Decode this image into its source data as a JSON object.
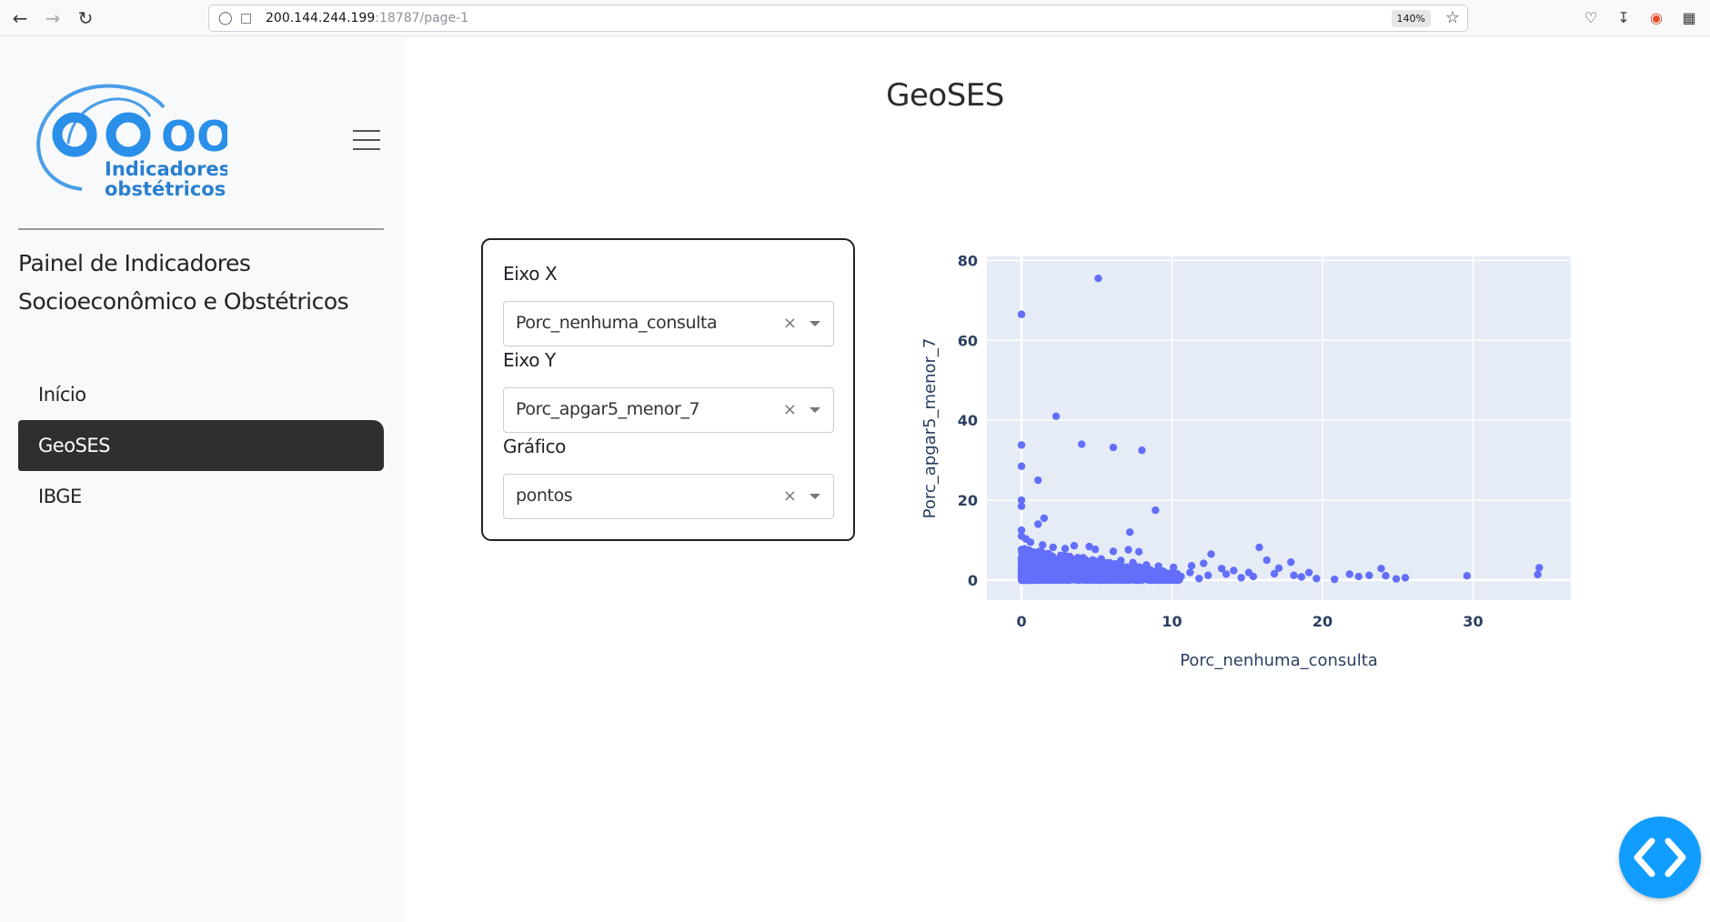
{
  "browser": {
    "url_host": "200.144.244.199",
    "url_rest": ":18787/page-1",
    "zoom": "140%"
  },
  "sidebar": {
    "logo_mark": "OOBr",
    "logo_line1": "Indicadores",
    "logo_line2": "obstétricos",
    "title": "Painel de Indicadores Socioeconômico e Obstétricos",
    "items": [
      {
        "label": "Início",
        "active": false
      },
      {
        "label": "GeoSES",
        "active": true
      },
      {
        "label": "IBGE",
        "active": false
      }
    ]
  },
  "main": {
    "title": "GeoSES",
    "controls": {
      "x_label": "Eixo X",
      "x_value": "Porc_nenhuma_consulta",
      "y_label": "Eixo Y",
      "y_value": "Porc_apgar5_menor_7",
      "chart_label": "Gráfico",
      "chart_value": "pontos",
      "clear_symbol": "×"
    }
  },
  "colors": {
    "accent": "#119dff",
    "marker": "#636efa",
    "plot_bg": "#e5ecf6",
    "nav_active": "#2f2f2f",
    "logo": "#4a9ee8"
  },
  "chart_data": {
    "type": "scatter",
    "xlabel": "Porc_nenhuma_consulta",
    "ylabel": "Porc_apgar5_menor_7",
    "xlim": [
      -2.3,
      36.5
    ],
    "ylim": [
      -5,
      81
    ],
    "xticks": [
      0,
      10,
      20,
      30
    ],
    "yticks": [
      0,
      20,
      40,
      60,
      80
    ],
    "grid": true,
    "series": [
      {
        "values": [
          [
            5.1,
            75.5
          ],
          [
            0,
            66.5
          ],
          [
            2.3,
            41
          ],
          [
            4,
            34
          ],
          [
            6.1,
            33.2
          ],
          [
            8,
            32.5
          ],
          [
            0,
            33.8
          ],
          [
            1.1,
            25
          ],
          [
            0,
            28.5
          ],
          [
            0,
            20
          ],
          [
            0,
            18.5
          ],
          [
            8.9,
            17.5
          ],
          [
            1.5,
            15.5
          ],
          [
            1.1,
            14
          ],
          [
            0,
            12.5
          ],
          [
            7.2,
            12
          ],
          [
            0,
            11
          ],
          [
            0.3,
            10.3
          ],
          [
            0.6,
            9.5
          ],
          [
            1.4,
            8.8
          ],
          [
            2.1,
            8.2
          ],
          [
            2.9,
            7.9
          ],
          [
            3.5,
            8.6
          ],
          [
            4.5,
            8.4
          ],
          [
            4.9,
            7.7
          ],
          [
            6.1,
            7.2
          ],
          [
            7.1,
            7.6
          ],
          [
            7.8,
            7.1
          ],
          [
            0.2,
            7.8
          ],
          [
            0.8,
            7
          ],
          [
            1.8,
            6.6
          ],
          [
            2.6,
            6.2
          ],
          [
            3.2,
            5.9
          ],
          [
            4.1,
            5.6
          ],
          [
            5.3,
            5.3
          ],
          [
            6.6,
            4.9
          ],
          [
            7.4,
            4.4
          ],
          [
            8.3,
            3.8
          ],
          [
            9.1,
            3.5
          ],
          [
            10.1,
            3.2
          ],
          [
            11.3,
            3.6
          ],
          [
            12.1,
            4.2
          ],
          [
            12.6,
            6.5
          ],
          [
            13.3,
            2.9
          ],
          [
            14.1,
            2.4
          ],
          [
            15.1,
            1.9
          ],
          [
            15.8,
            8.2
          ],
          [
            16.3,
            5
          ],
          [
            17.1,
            3
          ],
          [
            17.9,
            4.5
          ],
          [
            18.1,
            1.2
          ],
          [
            19.1,
            1.9
          ],
          [
            20.8,
            0.2
          ],
          [
            21.8,
            1.5
          ],
          [
            22.4,
            0.9
          ],
          [
            23.1,
            1.2
          ],
          [
            23.9,
            2.9
          ],
          [
            24.2,
            1.1
          ],
          [
            24.9,
            0.3
          ],
          [
            25.5,
            0.6
          ],
          [
            29.6,
            1.1
          ],
          [
            34.3,
            1.4
          ],
          [
            34.4,
            3.1
          ],
          [
            0,
            5
          ],
          [
            0,
            3.5
          ],
          [
            0,
            2
          ],
          [
            0,
            1
          ],
          [
            0,
            0.2
          ],
          [
            0.5,
            0.5
          ],
          [
            0.9,
            1.8
          ],
          [
            1.3,
            2.9
          ],
          [
            1.7,
            0.9
          ],
          [
            2.2,
            2.3
          ],
          [
            2.7,
            0.4
          ],
          [
            3.1,
            3.3
          ],
          [
            3.8,
            1.2
          ],
          [
            4.3,
            2.7
          ],
          [
            4.8,
            0.6
          ],
          [
            5.5,
            2.1
          ],
          [
            5.9,
            0.3
          ],
          [
            6.4,
            1.6
          ],
          [
            6.9,
            0.8
          ],
          [
            7.6,
            2.2
          ],
          [
            8.1,
            0.5
          ],
          [
            8.6,
            1.5
          ],
          [
            9.4,
            0.7
          ],
          [
            9.9,
            1.7
          ],
          [
            10.6,
            0.9
          ],
          [
            11.2,
            1.9
          ],
          [
            11.8,
            0.4
          ],
          [
            12.4,
            1.2
          ],
          [
            13.6,
            1.5
          ],
          [
            14.6,
            0.6
          ],
          [
            15.4,
            0.9
          ],
          [
            16.8,
            1.6
          ],
          [
            18.6,
            0.8
          ],
          [
            19.6,
            0.4
          ],
          [
            0.4,
            4.2
          ],
          [
            1.0,
            5.5
          ],
          [
            1.9,
            4.1
          ],
          [
            2.4,
            5.0
          ],
          [
            3.6,
            4.4
          ],
          [
            4.6,
            3.9
          ],
          [
            5.7,
            4.3
          ],
          [
            6.3,
            3.1
          ],
          [
            7.9,
            2.9
          ]
        ]
      }
    ]
  }
}
